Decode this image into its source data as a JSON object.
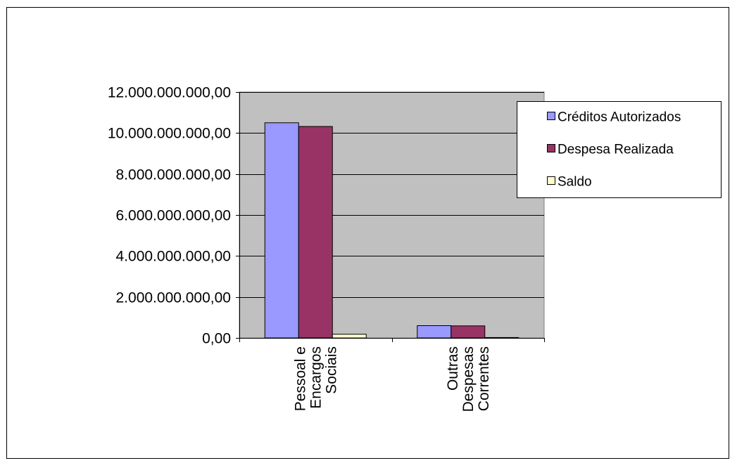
{
  "chart_data": {
    "type": "bar",
    "title": "",
    "xlabel": "",
    "ylabel": "",
    "ylim": [
      0,
      12000000000
    ],
    "yticks": [
      0,
      2000000000,
      4000000000,
      6000000000,
      8000000000,
      10000000000,
      12000000000
    ],
    "ytick_labels": [
      "0,00",
      "2.000.000.000,00",
      "4.000.000.000,00",
      "6.000.000.000,00",
      "8.000.000.000,00",
      "10.000.000.000,00",
      "12.000.000.000,00"
    ],
    "categories": [
      [
        "Pessoal e",
        "Encargos",
        "Sociais"
      ],
      [
        "Outras",
        "Despesas",
        "Correntes"
      ]
    ],
    "series": [
      {
        "name": "Créditos Autorizados",
        "color": "#9999FF",
        "values": [
          10500000000,
          600000000
        ]
      },
      {
        "name": "Despesa Realizada",
        "color": "#993366",
        "values": [
          10320000000,
          590000000
        ]
      },
      {
        "name": "Saldo",
        "color": "#FFFFCC",
        "values": [
          180000000,
          20000000
        ]
      }
    ],
    "plot_background": "#C0C0C0",
    "grid": true,
    "legend_position": "right"
  }
}
